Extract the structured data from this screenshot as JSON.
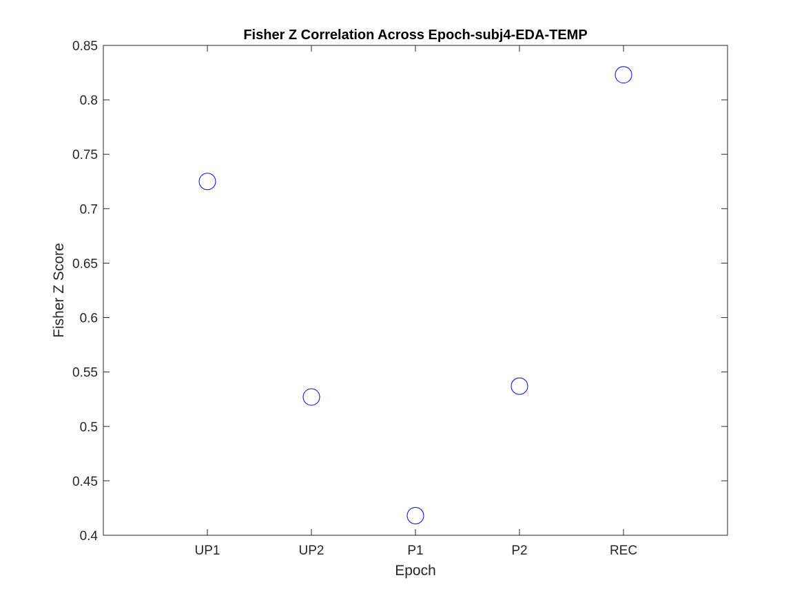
{
  "chart_data": {
    "type": "scatter",
    "title": "Fisher Z Correlation Across Epoch-subj4-EDA-TEMP",
    "xlabel": "Epoch",
    "ylabel": "Fisher Z Score",
    "categories": [
      "UP1",
      "UP2",
      "P1",
      "P2",
      "REC"
    ],
    "values": [
      0.725,
      0.527,
      0.418,
      0.537,
      0.823
    ],
    "ylim": [
      0.4,
      0.85
    ],
    "yticks": [
      "0.4",
      "0.45",
      "0.5",
      "0.55",
      "0.6",
      "0.65",
      "0.7",
      "0.75",
      "0.8",
      "0.85"
    ],
    "marker": "open-circle",
    "marker_color": "#0000ff",
    "grid": false,
    "legend": "none"
  }
}
